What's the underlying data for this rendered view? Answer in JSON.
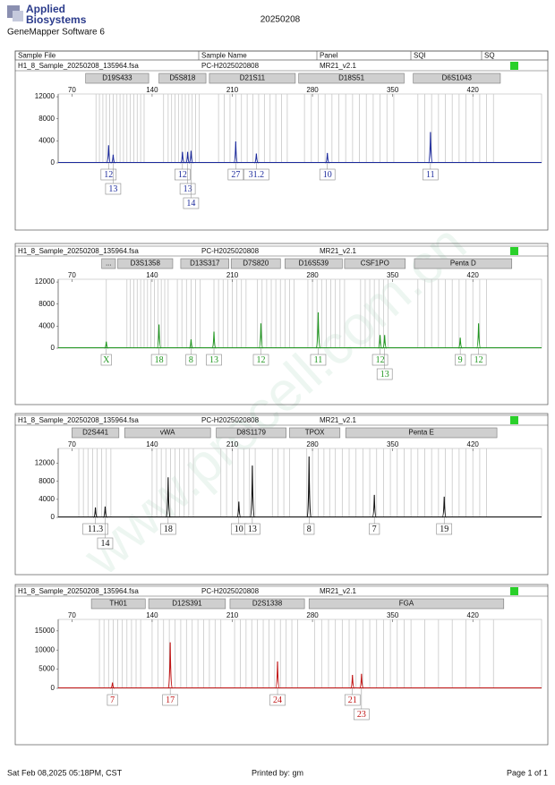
{
  "header": {
    "logo": [
      "Applied",
      "Biosystems"
    ],
    "software": "GeneMapper Software 6",
    "date": "20250208"
  },
  "table_header": [
    "Sample File",
    "Sample Name",
    "Panel",
    "SQI",
    "SQ"
  ],
  "watermark": "www.procell.com.cn",
  "footer": {
    "left": "Sat Feb 08,2025 05:18PM, CST",
    "center": "Printed by: gm",
    "right": "Page 1 of 1"
  },
  "chart_data": [
    {
      "type": "line",
      "sample_file": "H1_8_Sample_20250208_135964.fsa",
      "sample_name": "PC-H2025020808",
      "panel": "MR21_v2.1",
      "color": "#1c2a9c",
      "xlim": [
        58,
        480
      ],
      "xticks": [
        70,
        140,
        210,
        280,
        350,
        420
      ],
      "ylim": [
        0,
        12500
      ],
      "yticks": [
        0,
        4000,
        8000,
        12000
      ],
      "markers": [
        {
          "name": "D19S433",
          "start": 82,
          "end": 137
        },
        {
          "name": "D5S818",
          "start": 146,
          "end": 187
        },
        {
          "name": "D21S11",
          "start": 190,
          "end": 265
        },
        {
          "name": "D18S51",
          "start": 268,
          "end": 360
        },
        {
          "name": "D6S1043",
          "start": 368,
          "end": 444
        }
      ],
      "bins": [
        91,
        94,
        97,
        100,
        103,
        106,
        109,
        112,
        115,
        118,
        121,
        124,
        127,
        130,
        133,
        150,
        154,
        157,
        160,
        163,
        166,
        169,
        172,
        175,
        178,
        181,
        198,
        203,
        208,
        213,
        218,
        223,
        228,
        233,
        238,
        243,
        248,
        253,
        258,
        273,
        279,
        285,
        291,
        297,
        303,
        309,
        315,
        321,
        327,
        333,
        339,
        345,
        351,
        372,
        378,
        384,
        390,
        396,
        402,
        408,
        414,
        420,
        426,
        432,
        438
      ],
      "peaks": {
        "x": [
          102,
          106,
          166.5,
          171,
          174,
          213,
          231,
          293,
          383
        ],
        "values": [
          3200,
          1500,
          2000,
          2000,
          2200,
          3900,
          1700,
          1800,
          5600
        ],
        "labels": [
          "12",
          "13",
          "12",
          "13",
          "14",
          "27",
          "31.2",
          "10",
          "11"
        ]
      }
    },
    {
      "type": "line",
      "sample_file": "H1_8_Sample_20250208_135964.fsa",
      "sample_name": "PC-H2025020808",
      "panel": "MR21_v2.1",
      "color": "#1f961f",
      "xlim": [
        58,
        480
      ],
      "xticks": [
        70,
        140,
        210,
        280,
        350,
        420
      ],
      "ylim": [
        0,
        12500
      ],
      "yticks": [
        0,
        4000,
        8000,
        12000
      ],
      "markers": [
        {
          "name": "...",
          "start": 96,
          "end": 108
        },
        {
          "name": "D3S1358",
          "start": 110,
          "end": 158
        },
        {
          "name": "D13S317",
          "start": 165,
          "end": 207
        },
        {
          "name": "D7S820",
          "start": 209,
          "end": 252
        },
        {
          "name": "D16S539",
          "start": 256,
          "end": 306
        },
        {
          "name": "CSF1PO",
          "start": 308,
          "end": 361
        },
        {
          "name": "Penta D",
          "start": 369,
          "end": 454
        }
      ],
      "bins": [
        100,
        118,
        121,
        124,
        127,
        130,
        133,
        136,
        139,
        142,
        145,
        148,
        151,
        154,
        162,
        166,
        170,
        174,
        178,
        182,
        194,
        198,
        202,
        206,
        210,
        214,
        218,
        222,
        232,
        236,
        240,
        244,
        248,
        252,
        256,
        260,
        264,
        276,
        280,
        284,
        288,
        292,
        296,
        300,
        304,
        308,
        322,
        326,
        330,
        334,
        338,
        342,
        346,
        372,
        378,
        384,
        390,
        396,
        402,
        408,
        414,
        420,
        426,
        432
      ],
      "peaks": {
        "x": [
          100,
          146,
          174,
          194,
          235,
          285,
          339,
          343,
          409,
          425
        ],
        "values": [
          1200,
          4300,
          1600,
          3000,
          4500,
          6500,
          2400,
          2400,
          1900,
          4500
        ],
        "labels": [
          "X",
          "18",
          "8",
          "13",
          "12",
          "11",
          "12",
          "13",
          "9",
          "12"
        ]
      }
    },
    {
      "type": "line",
      "sample_file": "H1_8_Sample_20250208_135964.fsa",
      "sample_name": "PC-H2025020808",
      "panel": "MR21_v2.1",
      "color": "#111111",
      "xlim": [
        58,
        480
      ],
      "xticks": [
        70,
        140,
        210,
        280,
        350,
        420
      ],
      "ylim": [
        0,
        15300
      ],
      "yticks": [
        0,
        4000,
        8000,
        12000
      ],
      "markers": [
        {
          "name": "D2S441",
          "start": 70,
          "end": 111
        },
        {
          "name": "vWA",
          "start": 116,
          "end": 191
        },
        {
          "name": "D8S1179",
          "start": 196,
          "end": 257
        },
        {
          "name": "TPOX",
          "start": 260,
          "end": 304
        },
        {
          "name": "Penta E",
          "start": 309,
          "end": 441
        }
      ],
      "bins": [
        76,
        80,
        84,
        88,
        92,
        96,
        100,
        104,
        140,
        144,
        148,
        152,
        156,
        160,
        164,
        168,
        172,
        176,
        200,
        205,
        210,
        215,
        220,
        225,
        230,
        245,
        250,
        255,
        260,
        275,
        280,
        285,
        290,
        295,
        300,
        306,
        312,
        318,
        324,
        330,
        336,
        342,
        348,
        354,
        360,
        366,
        372,
        378,
        384,
        390,
        396,
        402,
        408,
        414,
        420,
        426,
        432
      ],
      "peaks": {
        "x": [
          90.5,
          99,
          154,
          215.7,
          227.5,
          277,
          334,
          395
        ],
        "values": [
          2200,
          2400,
          8900,
          3500,
          11500,
          13500,
          5000,
          4600
        ],
        "labels": [
          "11.3",
          "14",
          "18",
          "10",
          "13",
          "8",
          "7",
          "19"
        ]
      }
    },
    {
      "type": "line",
      "sample_file": "H1_8_Sample_20250208_135964.fsa",
      "sample_name": "PC-H2025020808",
      "panel": "MR21_v2.1",
      "color": "#c01414",
      "xlim": [
        58,
        480
      ],
      "xticks": [
        70,
        140,
        210,
        280,
        350,
        420
      ],
      "ylim": [
        0,
        18000
      ],
      "yticks": [
        0,
        5000,
        10000,
        15000
      ],
      "markers": [
        {
          "name": "TH01",
          "start": 87,
          "end": 134
        },
        {
          "name": "D12S391",
          "start": 137,
          "end": 204
        },
        {
          "name": "D2S1338",
          "start": 208,
          "end": 273
        },
        {
          "name": "FGA",
          "start": 277,
          "end": 447
        }
      ],
      "bins": [
        94,
        98,
        102,
        106,
        110,
        114,
        118,
        122,
        126,
        130,
        140,
        145,
        150,
        155,
        160,
        165,
        170,
        175,
        180,
        185,
        190,
        195,
        200,
        212,
        217,
        222,
        227,
        232,
        237,
        242,
        247,
        252,
        257,
        262,
        267,
        282,
        288,
        294,
        300,
        306,
        312,
        318,
        324,
        330,
        336,
        342,
        348,
        354,
        360,
        366,
        378,
        390,
        402,
        414,
        426,
        438
      ],
      "peaks": {
        "x": [
          105.4,
          155.8,
          249.5,
          314.9,
          322.8
        ],
        "values": [
          1500,
          12000,
          7000,
          3500,
          3800
        ],
        "labels": [
          "7",
          "17",
          "24",
          "21",
          "23"
        ]
      }
    }
  ]
}
